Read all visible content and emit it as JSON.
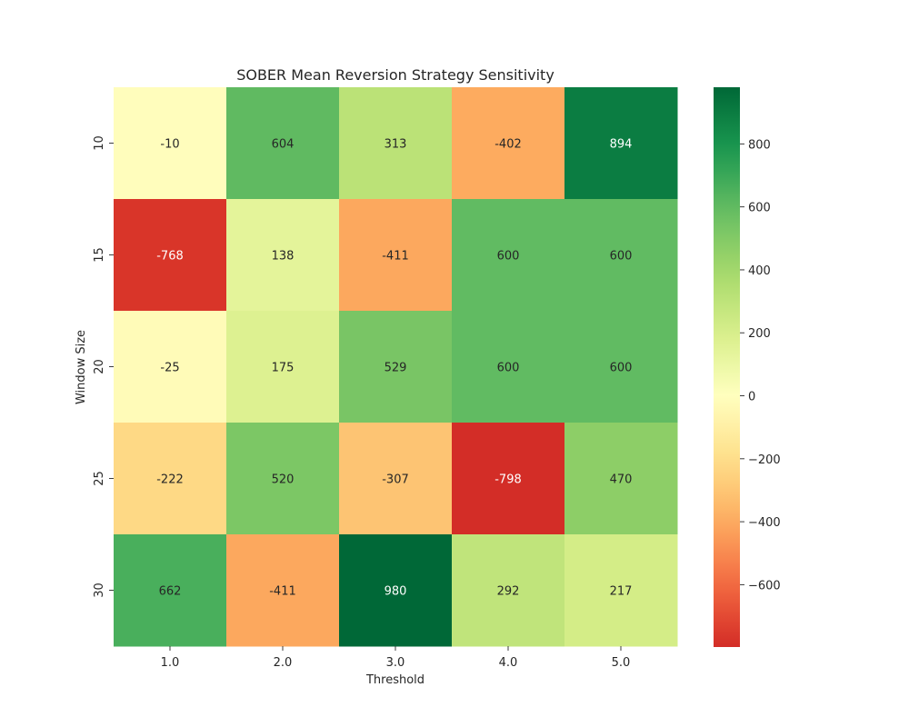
{
  "chart_data": {
    "type": "heatmap",
    "title": "SOBER Mean Reversion Strategy Sensitivity",
    "xlabel": "Threshold",
    "ylabel": "Window Size",
    "x_categories": [
      "1.0",
      "2.0",
      "3.0",
      "4.0",
      "5.0"
    ],
    "y_categories": [
      "10",
      "15",
      "20",
      "25",
      "30"
    ],
    "values": [
      [
        -10,
        604,
        313,
        -402,
        894
      ],
      [
        -768,
        138,
        -411,
        600,
        600
      ],
      [
        -25,
        175,
        529,
        600,
        600
      ],
      [
        -222,
        520,
        -307,
        -798,
        470
      ],
      [
        662,
        -411,
        980,
        292,
        217
      ]
    ],
    "colormap": "RdYlGn",
    "vmin": -798,
    "vmax": 980,
    "center": 0,
    "colorbar_ticks": [
      -600,
      -400,
      -200,
      0,
      200,
      400,
      600,
      800
    ],
    "colorbar_tick_labels": [
      "−600",
      "−400",
      "−200",
      "0",
      "200",
      "400",
      "600",
      "800"
    ],
    "annotations": true
  }
}
